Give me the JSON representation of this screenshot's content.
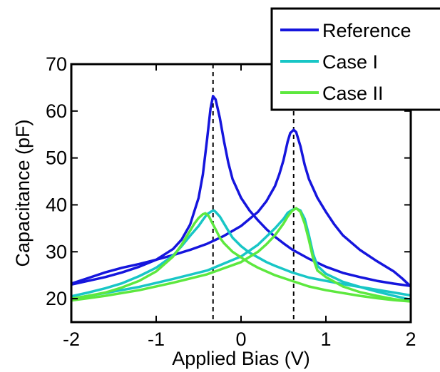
{
  "chart_data": {
    "type": "line",
    "title": "",
    "xlabel": "Applied Bias (V)",
    "ylabel": "Capacitance (pF)",
    "xlim": [
      -2,
      2
    ],
    "ylim": [
      15,
      70
    ],
    "xticks": [
      -2,
      -1,
      0,
      1,
      2
    ],
    "yticks": [
      20,
      30,
      40,
      50,
      60,
      70
    ],
    "grid": false,
    "legend_placement": "top-right",
    "reference_lines": [
      {
        "x": -0.33,
        "style": "dashed",
        "color": "#000000"
      },
      {
        "x": 0.62,
        "style": "dashed",
        "color": "#000000"
      }
    ],
    "series": [
      {
        "name": "Reference",
        "color": "#1515dd",
        "sweeps": [
          {
            "x": [
              -2.0,
              -1.8,
              -1.6,
              -1.4,
              -1.2,
              -1.0,
              -0.8,
              -0.7,
              -0.6,
              -0.5,
              -0.45,
              -0.4,
              -0.36,
              -0.33,
              -0.3,
              -0.25,
              -0.2,
              -0.15,
              -0.1,
              0.0,
              0.1,
              0.2,
              0.3,
              0.4,
              0.5,
              0.6,
              0.8,
              1.0,
              1.2,
              1.4,
              1.6,
              1.8,
              2.0
            ],
            "y": [
              23,
              23.8,
              24.6,
              25.6,
              26.8,
              28.3,
              30.6,
              32.6,
              35.8,
              41.5,
              46.5,
              54,
              60.5,
              63.2,
              62.5,
              58.5,
              53.5,
              49,
              45.5,
              41.5,
              38.8,
              36.7,
              34.8,
              33.2,
              31.8,
              30.5,
              28.5,
              26.8,
              25.5,
              24.6,
              23.8,
              23.2,
              22.7
            ]
          },
          {
            "x": [
              -2.0,
              -1.8,
              -1.6,
              -1.4,
              -1.2,
              -1.0,
              -0.8,
              -0.6,
              -0.4,
              -0.2,
              0.0,
              0.2,
              0.3,
              0.4,
              0.45,
              0.5,
              0.55,
              0.58,
              0.62,
              0.65,
              0.7,
              0.75,
              0.8,
              0.9,
              1.0,
              1.1,
              1.2,
              1.4,
              1.6,
              1.8,
              1.9,
              2.0
            ],
            "y": [
              23.2,
              24.4,
              25.6,
              26.6,
              27.4,
              28.3,
              29.3,
              30.4,
              31.7,
              33.4,
              35.5,
              38.5,
              40.8,
              44,
              46.5,
              49.5,
              53.5,
              55.3,
              56,
              55.5,
              52.5,
              48.5,
              45.5,
              41.5,
              38.5,
              35.8,
              33.5,
              30.4,
              28,
              25.8,
              24.3,
              22.6
            ]
          }
        ]
      },
      {
        "name": "Case I",
        "color": "#18c6c6",
        "sweeps": [
          {
            "x": [
              -2.0,
              -1.8,
              -1.6,
              -1.4,
              -1.2,
              -1.0,
              -0.8,
              -0.7,
              -0.6,
              -0.5,
              -0.45,
              -0.4,
              -0.35,
              -0.32,
              -0.3,
              -0.25,
              -0.2,
              -0.15,
              -0.1,
              0.0,
              0.1,
              0.2,
              0.3,
              0.4,
              0.6,
              0.8,
              1.0,
              1.2,
              1.4,
              1.6,
              1.8,
              2.0
            ],
            "y": [
              20.5,
              21.3,
              22.2,
              23.3,
              24.8,
              26.6,
              29.2,
              31.2,
              33.4,
              35.5,
              36.8,
              38,
              38.6,
              38.8,
              38.5,
              37.5,
              36,
              34.5,
              33,
              31.2,
              29.8,
              28.8,
              27.8,
              27,
              25.6,
              24.5,
              23.8,
              23.1,
              22.5,
              21.9,
              21.3,
              20.7
            ]
          },
          {
            "x": [
              -2.0,
              -1.6,
              -1.2,
              -0.8,
              -0.4,
              0.0,
              0.2,
              0.4,
              0.5,
              0.55,
              0.6,
              0.65,
              0.7,
              0.75,
              0.8,
              0.85,
              0.9,
              1.0,
              1.2,
              1.4,
              1.6,
              1.8,
              2.0
            ],
            "y": [
              20,
              21.2,
              22.5,
              24.2,
              26,
              29,
              31.5,
              35,
              37,
              38.3,
              38.9,
              39.2,
              38.8,
              37,
              33.5,
              29.5,
              27,
              25.3,
              23.6,
              22.5,
              21.5,
              20.6,
              19.8
            ]
          }
        ]
      },
      {
        "name": "Case II",
        "color": "#5de83e",
        "sweeps": [
          {
            "x": [
              -2.0,
              -1.8,
              -1.6,
              -1.4,
              -1.2,
              -1.0,
              -0.8,
              -0.7,
              -0.6,
              -0.55,
              -0.5,
              -0.45,
              -0.42,
              -0.38,
              -0.35,
              -0.3,
              -0.25,
              -0.2,
              -0.1,
              0.0,
              0.1,
              0.2,
              0.4,
              0.6,
              0.8,
              1.0,
              1.2,
              1.4,
              1.6,
              1.8,
              2.0
            ],
            "y": [
              20,
              20.6,
              21.3,
              22.4,
              23.8,
              25.8,
              29,
              31.5,
              34.5,
              36,
              37.2,
              38,
              38.2,
              37.6,
              36.5,
              34.8,
              33,
              31.8,
              30,
              28.8,
              27.6,
              26.6,
              25,
              23.8,
              22.6,
              21.8,
              21.2,
              20.6,
              20.1,
              19.7,
              19.4
            ]
          },
          {
            "x": [
              -2.0,
              -1.6,
              -1.2,
              -0.8,
              -0.4,
              0.0,
              0.2,
              0.3,
              0.4,
              0.5,
              0.55,
              0.6,
              0.65,
              0.7,
              0.75,
              0.8,
              0.85,
              0.9,
              1.0,
              1.2,
              1.4,
              1.6,
              1.8,
              2.0
            ],
            "y": [
              19.6,
              20.6,
              21.8,
              23.4,
              25.2,
              27.8,
              30,
              31.6,
              33.5,
              36,
              37.5,
              38.7,
              39.3,
              38.5,
              36,
              32.5,
              28.5,
              26,
              24.6,
              22.6,
              21.4,
              20.6,
              19.9,
              19.4
            ]
          }
        ]
      }
    ]
  }
}
